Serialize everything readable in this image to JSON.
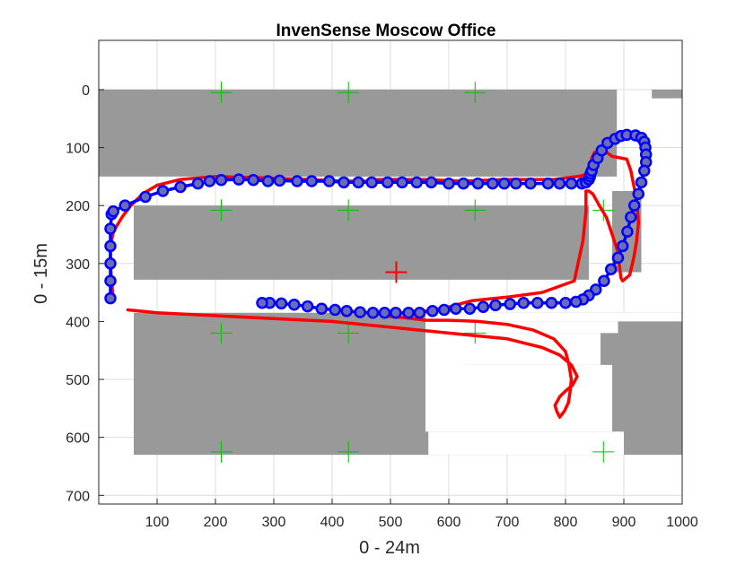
{
  "chart_data": {
    "type": "scatter",
    "title": "InvenSense Moscow Office",
    "xlabel": "0 - 24m",
    "ylabel": "0 - 15m",
    "xlim": [
      0,
      1000
    ],
    "ylim": [
      715,
      -85
    ],
    "y_reversed": true,
    "grid": true,
    "x_ticks": [
      100,
      200,
      300,
      400,
      500,
      600,
      700,
      800,
      900,
      1000
    ],
    "y_ticks": [
      0,
      100,
      200,
      300,
      400,
      500,
      600,
      700
    ],
    "colors": {
      "walls": "#999999",
      "reference_path": "#ff0000",
      "estimated_path": "#0000ff",
      "marker_fill": "#6c6cb4",
      "grid": "#dcdcdc",
      "plus_markers": "#00c000",
      "start_marker": "#ff0000"
    },
    "walls": [
      {
        "x": [
          0,
          888,
          888,
          0
        ],
        "y": [
          0,
          0,
          150,
          150
        ]
      },
      {
        "x": [
          948,
          1000,
          1000,
          948
        ],
        "y": [
          0,
          0,
          15,
          15
        ]
      },
      {
        "x": [
          60,
          840,
          840,
          60
        ],
        "y": [
          200,
          200,
          328,
          328
        ]
      },
      {
        "x": [
          880,
          930,
          930,
          880
        ],
        "y": [
          175,
          175,
          315,
          315
        ]
      },
      {
        "x": [
          60,
          1000,
          1000,
          60
        ],
        "y": [
          385,
          385,
          630,
          630
        ]
      }
    ],
    "open_areas": [
      {
        "x": [
          0,
          60,
          60,
          0
        ],
        "y": [
          385,
          385,
          465,
          465
        ]
      },
      {
        "x": [
          560,
          1000,
          1000,
          560
        ],
        "y": [
          385,
          385,
          400,
          400
        ]
      },
      {
        "x": [
          560,
          890,
          890,
          560
        ],
        "y": [
          400,
          400,
          420,
          420
        ]
      },
      {
        "x": [
          560,
          860,
          860,
          560
        ],
        "y": [
          420,
          420,
          475,
          475
        ]
      },
      {
        "x": [
          560,
          880,
          880,
          560
        ],
        "y": [
          475,
          475,
          590,
          590
        ]
      },
      {
        "x": [
          565,
          900,
          900,
          565
        ],
        "y": [
          590,
          590,
          630,
          630
        ]
      },
      {
        "x": [
          560,
          600,
          600,
          560
        ],
        "y": [
          400,
          400,
          430,
          430
        ]
      },
      {
        "x": [
          561,
          626,
          626,
          561
        ],
        "y": [
          400,
          400,
          423,
          423
        ]
      },
      {
        "x": [
          561,
          626,
          626,
          561
        ],
        "y": [
          423,
          423,
          490,
          490
        ]
      }
    ],
    "plus_markers": [
      {
        "x": 210,
        "y": 208
      },
      {
        "x": 428,
        "y": 208
      },
      {
        "x": 645,
        "y": 208
      },
      {
        "x": 865,
        "y": 208
      },
      {
        "x": 210,
        "y": 420
      },
      {
        "x": 428,
        "y": 420
      },
      {
        "x": 645,
        "y": 420
      },
      {
        "x": 210,
        "y": 625
      },
      {
        "x": 428,
        "y": 625
      },
      {
        "x": 865,
        "y": 625
      },
      {
        "x": 210,
        "y": 5
      },
      {
        "x": 428,
        "y": 5
      },
      {
        "x": 645,
        "y": 5
      }
    ],
    "start_marker": {
      "x": 510,
      "y": 315
    },
    "series": [
      {
        "mode": "line",
        "x": [
          25,
          22,
          20,
          20,
          25,
          40,
          55,
          75,
          100,
          140,
          200,
          280,
          360,
          420,
          460,
          480,
          560,
          620,
          700,
          780,
          820,
          830,
          840,
          842,
          845,
          850,
          860,
          870,
          880,
          905,
          912,
          918,
          923,
          925,
          922,
          917,
          910,
          898,
          895,
          893,
          890,
          880,
          870,
          858,
          847,
          840,
          835,
          835,
          830,
          815,
          760,
          700,
          640,
          600,
          560,
          520,
          500,
          490,
          505,
          530,
          560,
          600,
          650,
          700,
          745,
          780,
          800,
          806,
          810,
          808,
          805,
          798,
          790,
          785,
          782,
          790,
          800,
          812,
          820,
          810,
          790,
          760,
          700,
          600,
          500,
          400,
          300,
          200,
          100,
          50
        ],
        "y": [
          365,
          330,
          300,
          270,
          245,
          220,
          200,
          180,
          165,
          155,
          150,
          152,
          155,
          158,
          158,
          155,
          155,
          158,
          155,
          155,
          150,
          148,
          142,
          130,
          118,
          108,
          105,
          108,
          115,
          120,
          140,
          170,
          200,
          230,
          260,
          290,
          320,
          330,
          325,
          310,
          280,
          250,
          220,
          200,
          180,
          175,
          175,
          210,
          260,
          330,
          350,
          358,
          364,
          375,
          382,
          385,
          388,
          390,
          392,
          394,
          398,
          398,
          400,
          405,
          415,
          430,
          452,
          475,
          500,
          520,
          540,
          555,
          565,
          555,
          545,
          530,
          520,
          510,
          495,
          475,
          458,
          445,
          430,
          420,
          410,
          400,
          395,
          390,
          385,
          380
        ]
      },
      {
        "mode": "markers-line",
        "x": [
          20,
          20,
          20,
          20,
          20,
          22,
          25,
          45,
          80,
          110,
          140,
          170,
          190,
          210,
          240,
          265,
          290,
          310,
          340,
          365,
          395,
          420,
          445,
          468,
          495,
          520,
          545,
          570,
          600,
          625,
          650,
          675,
          695,
          715,
          740,
          770,
          790,
          810,
          828,
          835,
          840,
          842,
          843,
          845,
          848,
          855,
          862,
          872,
          885,
          895,
          905,
          920,
          930,
          935,
          937,
          938,
          938,
          935,
          930,
          925,
          918,
          912,
          906,
          898,
          890,
          878,
          866,
          852,
          840,
          830,
          818,
          800,
          776,
          752,
          728,
          705,
          680,
          659,
          636,
          612,
          592,
          572,
          550,
          531,
          509,
          490,
          470,
          448,
          425,
          405,
          382,
          358,
          335,
          313,
          293,
          280
        ],
        "y": [
          360,
          330,
          300,
          270,
          240,
          215,
          210,
          200,
          185,
          175,
          168,
          162,
          158,
          156,
          155,
          156,
          158,
          157,
          158,
          158,
          158,
          160,
          160,
          160,
          160,
          160,
          160,
          160,
          162,
          162,
          162,
          162,
          162,
          162,
          162,
          162,
          162,
          162,
          162,
          160,
          155,
          150,
          145,
          140,
          130,
          118,
          105,
          92,
          85,
          80,
          78,
          79,
          83,
          90,
          100,
          112,
          125,
          140,
          160,
          180,
          200,
          220,
          245,
          270,
          290,
          310,
          330,
          345,
          355,
          362,
          366,
          368,
          368,
          368,
          368,
          370,
          372,
          375,
          378,
          378,
          380,
          382,
          385,
          385,
          385,
          385,
          385,
          384,
          382,
          380,
          378,
          374,
          371,
          369,
          368,
          368
        ]
      }
    ]
  }
}
